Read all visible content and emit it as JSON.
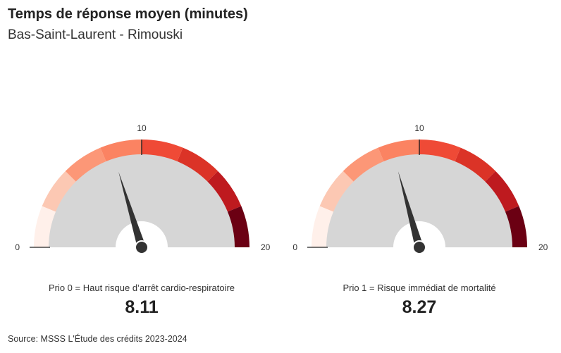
{
  "header": {
    "title": "Temps de réponse moyen (minutes)",
    "subtitle": "Bas-Saint-Laurent - Rimouski"
  },
  "chart_data": [
    {
      "type": "gauge",
      "label": "Prio 0 = Haut risque d’arrêt cardio-respiratoire",
      "value": 8.11,
      "value_label": "8.11",
      "min": 0,
      "max": 20,
      "tick_labels": [
        "0",
        "10",
        "20"
      ],
      "bands": [
        {
          "from": 0,
          "to": 2.5,
          "color": "#fff0ea"
        },
        {
          "from": 2.5,
          "to": 5,
          "color": "#fcc8b3"
        },
        {
          "from": 5,
          "to": 7.5,
          "color": "#fc9777"
        },
        {
          "from": 7.5,
          "to": 10,
          "color": "#fb8362"
        },
        {
          "from": 10,
          "to": 12.5,
          "color": "#ef4a36"
        },
        {
          "from": 12.5,
          "to": 15,
          "color": "#db3327"
        },
        {
          "from": 15,
          "to": 17.5,
          "color": "#be1a1f"
        },
        {
          "from": 17.5,
          "to": 20,
          "color": "#6b0013"
        }
      ]
    },
    {
      "type": "gauge",
      "label": "Prio 1 = Risque immédiat de mortalité",
      "value": 8.27,
      "value_label": "8.27",
      "min": 0,
      "max": 20,
      "tick_labels": [
        "0",
        "10",
        "20"
      ],
      "bands": [
        {
          "from": 0,
          "to": 2.5,
          "color": "#fff0ea"
        },
        {
          "from": 2.5,
          "to": 5,
          "color": "#fcc8b3"
        },
        {
          "from": 5,
          "to": 7.5,
          "color": "#fc9777"
        },
        {
          "from": 7.5,
          "to": 10,
          "color": "#fb8362"
        },
        {
          "from": 10,
          "to": 12.5,
          "color": "#ef4a36"
        },
        {
          "from": 12.5,
          "to": 15,
          "color": "#db3327"
        },
        {
          "from": 15,
          "to": 17.5,
          "color": "#be1a1f"
        },
        {
          "from": 17.5,
          "to": 20,
          "color": "#6b0013"
        }
      ]
    }
  ],
  "colors": {
    "track": "#d6d6d6",
    "needle": "#333333"
  },
  "footer": {
    "source": "Source: MSSS L'Étude des crédits 2023-2024"
  }
}
